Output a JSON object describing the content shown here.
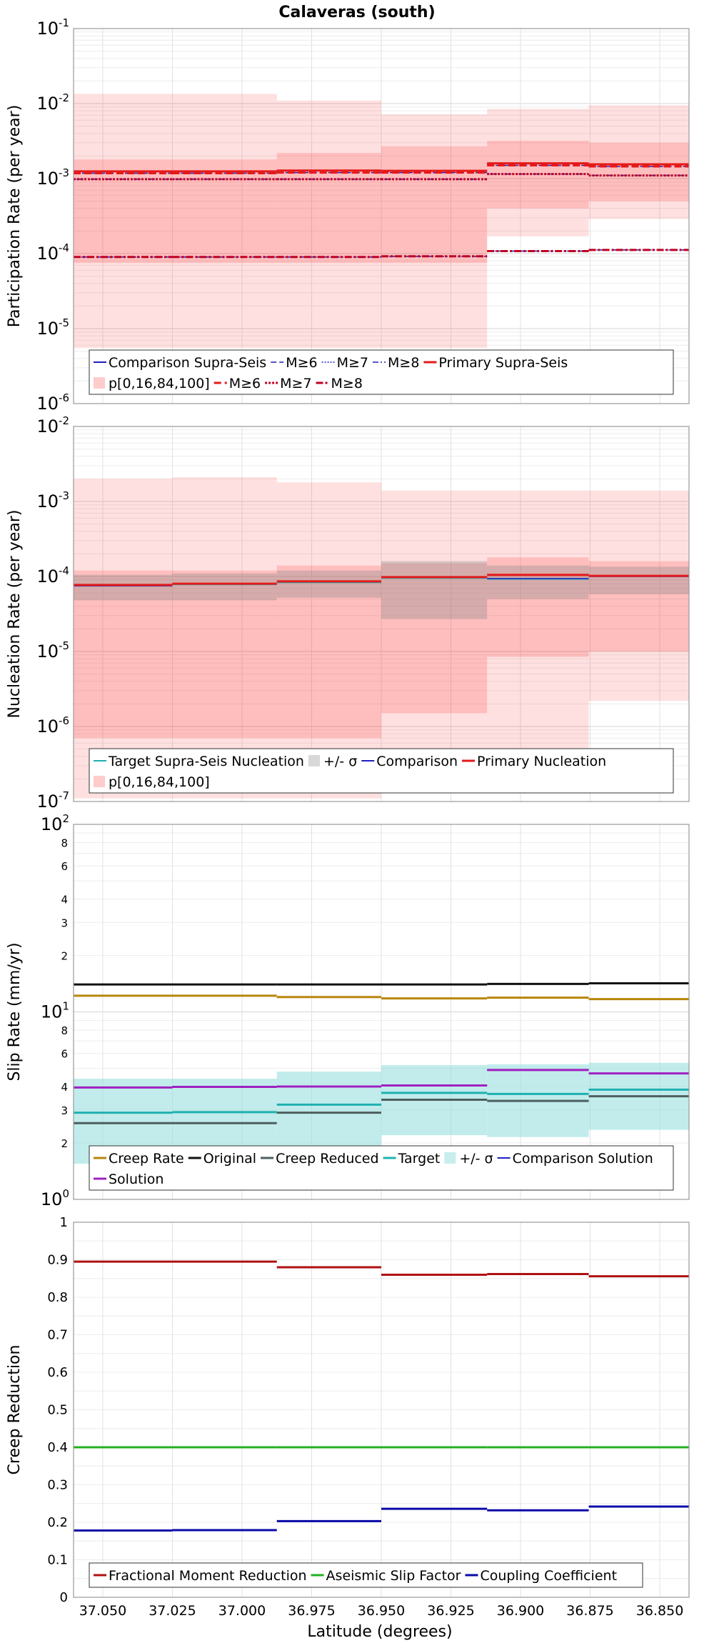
{
  "title": "Calaveras (south)",
  "xlabel": "Latitude (degrees)",
  "x_reversed": true,
  "xlim": [
    37.0605,
    36.8395
  ],
  "x_ticks": [
    37.05,
    37.025,
    37.0,
    36.975,
    36.95,
    36.925,
    36.9,
    36.875,
    36.85
  ],
  "x_tick_labels": [
    "37.050",
    "37.025",
    "37.000",
    "36.975",
    "36.950",
    "36.925",
    "36.900",
    "36.875",
    "36.850"
  ],
  "section_edges": [
    37.0605,
    37.025,
    36.9875,
    36.95,
    36.912,
    36.8755,
    36.8395
  ],
  "colors": {
    "primary_red": "#e41a1a",
    "fill_red": "#ff0000",
    "comparison_blue": "#1f1fbf",
    "coupling_blue": "#0a0aa8",
    "creep_gold": "#b8860b",
    "original_black": "#111111",
    "creep_reduced_gray": "#4d5e5e",
    "target_teal": "#1fb0b0",
    "sigma_fill": "#8fdcdc",
    "solution_purple": "#a020c0",
    "fmr_darkred": "#b01010",
    "aseismic_green": "#22b022",
    "nucleation_gray": "#8a8a8a"
  },
  "chart_data": [
    {
      "id": "participation",
      "type": "line",
      "scale": "log",
      "ylabel": "Participation Rate (per year)",
      "ylim": [
        1e-06,
        0.1
      ],
      "y_ticks": [
        {
          "base": "10",
          "exp": "-6"
        },
        {
          "base": "10",
          "exp": "-5"
        },
        {
          "base": "10",
          "exp": "-4"
        },
        {
          "base": "10",
          "exp": "-3"
        },
        {
          "base": "10",
          "exp": "-2"
        },
        {
          "base": "10",
          "exp": "-1"
        }
      ],
      "bands": [
        {
          "name": "p[0,16,84,100] outer",
          "lo": [
            5.5e-06,
            5.5e-06,
            5.5e-06,
            5.5e-06,
            0.00017,
            0.00029
          ],
          "hi": [
            0.0135,
            0.0135,
            0.011,
            0.0072,
            0.0085,
            0.0095
          ],
          "color": "#ff0000",
          "opacity": 0.12
        },
        {
          "name": "p[0,16,84,100] inner",
          "lo": [
            7.5e-05,
            7.5e-05,
            7.5e-05,
            7.5e-05,
            0.0004,
            0.0005
          ],
          "hi": [
            0.0018,
            0.0018,
            0.0022,
            0.0027,
            0.0032,
            0.003
          ],
          "color": "#ff0000",
          "opacity": 0.15
        }
      ],
      "series": [
        {
          "name": "Comparison Supra-Seis",
          "values": [
            0.00125,
            0.00125,
            0.00128,
            0.00127,
            0.0016,
            0.00155
          ],
          "color": "#1f1fbf",
          "width": 2,
          "dash": ""
        },
        {
          "name": "M≥6",
          "values": [
            0.00118,
            0.00118,
            0.0012,
            0.0012,
            0.0015,
            0.00145
          ],
          "color": "#1f1fbf",
          "width": 1.5,
          "dash": "8,4"
        },
        {
          "name": "M≥7",
          "values": [
            0.00098,
            0.00098,
            0.00098,
            0.00098,
            0.00115,
            0.0011
          ],
          "color": "#1f1fbf",
          "width": 1.5,
          "dash": "2,2"
        },
        {
          "name": "M≥8",
          "values": [
            9e-05,
            9e-05,
            9e-05,
            9.2e-05,
            0.000108,
            0.000112
          ],
          "color": "#1f1fbf",
          "width": 1.5,
          "dash": "8,3,2,3"
        },
        {
          "name": "Primary Supra-Seis",
          "values": [
            0.00125,
            0.00125,
            0.00128,
            0.00127,
            0.0016,
            0.00155
          ],
          "color": "#e41a1a",
          "width": 3,
          "dash": ""
        },
        {
          "name": "M≥6",
          "values": [
            0.00118,
            0.00118,
            0.0012,
            0.0012,
            0.0015,
            0.00145
          ],
          "color": "#e41a1a",
          "width": 3,
          "dash": "10,5"
        },
        {
          "name": "M≥7",
          "values": [
            0.00098,
            0.00098,
            0.00098,
            0.00098,
            0.00115,
            0.0011
          ],
          "color": "#c00020",
          "width": 3,
          "dash": "3,2"
        },
        {
          "name": "M≥8",
          "values": [
            9e-05,
            9e-05,
            9e-05,
            9.2e-05,
            0.000108,
            0.000112
          ],
          "color": "#c00020",
          "width": 3,
          "dash": "10,3,3,3"
        }
      ],
      "legend": {
        "rows": [
          [
            {
              "label": "Comparison Supra-Seis",
              "kind": "line",
              "color": "#1f1fbf",
              "dash": "",
              "width": 2
            },
            {
              "label": "M≥6",
              "kind": "line",
              "color": "#1f1fbf",
              "dash": "8,4",
              "width": 1.5
            },
            {
              "label": "M≥7",
              "kind": "line",
              "color": "#1f1fbf",
              "dash": "2,2",
              "width": 1.5
            },
            {
              "label": "M≥8",
              "kind": "line",
              "color": "#1f1fbf",
              "dash": "8,3,2,3",
              "width": 1.5
            },
            {
              "label": "Primary Supra-Seis",
              "kind": "line",
              "color": "#e41a1a",
              "dash": "",
              "width": 3
            }
          ],
          [
            {
              "label": "p[0,16,84,100]",
              "kind": "box",
              "color": "#ffcccc"
            },
            {
              "label": "M≥6",
              "kind": "line",
              "color": "#e41a1a",
              "dash": "10,5",
              "width": 3
            },
            {
              "label": "M≥7",
              "kind": "line",
              "color": "#c00020",
              "dash": "3,2",
              "width": 3
            },
            {
              "label": "M≥8",
              "kind": "line",
              "color": "#c00020",
              "dash": "10,3,3,3",
              "width": 3
            }
          ]
        ]
      }
    },
    {
      "id": "nucleation",
      "type": "line",
      "scale": "log",
      "ylabel": "Nucleation Rate (per year)",
      "ylim": [
        1e-07,
        0.01
      ],
      "y_ticks": [
        {
          "base": "10",
          "exp": "-7"
        },
        {
          "base": "10",
          "exp": "-6"
        },
        {
          "base": "10",
          "exp": "-5"
        },
        {
          "base": "10",
          "exp": "-4"
        },
        {
          "base": "10",
          "exp": "-3"
        },
        {
          "base": "10",
          "exp": "-2"
        }
      ],
      "bands": [
        {
          "name": "p[0,16,84,100] outer",
          "lo": [
            1.1e-07,
            1.1e-07,
            1.1e-07,
            1.7e-07,
            5e-07,
            2.2e-06
          ],
          "hi": [
            0.002,
            0.0021,
            0.0018,
            0.0014,
            0.0014,
            0.0014
          ],
          "color": "#ff0000",
          "opacity": 0.12
        },
        {
          "name": "p[0,16,84,100] inner",
          "lo": [
            7e-07,
            7e-07,
            7e-07,
            1.5e-06,
            8.5e-06,
            1e-05
          ],
          "hi": [
            0.00012,
            0.00012,
            0.00014,
            0.00015,
            0.00018,
            0.00016
          ],
          "color": "#ff0000",
          "opacity": 0.15
        },
        {
          "name": "+/- σ",
          "lo": [
            4.8e-05,
            4.8e-05,
            5.2e-05,
            2.7e-05,
            5e-05,
            5.8e-05
          ],
          "hi": [
            0.000105,
            0.00011,
            0.00012,
            0.00016,
            0.00014,
            0.000135
          ],
          "color": "#8a8a8a",
          "opacity": 0.35
        }
      ],
      "series": [
        {
          "name": "Target Supra-Seis Nucleation",
          "values": [
            7.5e-05,
            7.8e-05,
            8.3e-05,
            9.5e-05,
            9.2e-05,
            0.0001
          ],
          "color": "#1fb0b0",
          "width": 1.5,
          "dash": ""
        },
        {
          "name": "Comparison",
          "values": [
            7.5e-05,
            7.9e-05,
            8.5e-05,
            9.7e-05,
            9.4e-05,
            0.0001
          ],
          "color": "#1f1fbf",
          "width": 1.5,
          "dash": ""
        },
        {
          "name": "Primary Nucleation",
          "values": [
            7.7e-05,
            8e-05,
            8.6e-05,
            9.8e-05,
            0.000105,
            0.000102
          ],
          "color": "#e41a1a",
          "width": 3,
          "dash": ""
        }
      ],
      "legend": {
        "rows": [
          [
            {
              "label": "Target Supra-Seis Nucleation",
              "kind": "line",
              "color": "#1fb0b0",
              "dash": "",
              "width": 2
            },
            {
              "label": "+/- σ",
              "kind": "box",
              "color": "#d8d8d8"
            },
            {
              "label": "Comparison",
              "kind": "line",
              "color": "#1f1fbf",
              "dash": "",
              "width": 2
            },
            {
              "label": "Primary Nucleation",
              "kind": "line",
              "color": "#e41a1a",
              "dash": "",
              "width": 3
            }
          ],
          [
            {
              "label": "p[0,16,84,100]",
              "kind": "box",
              "color": "#ffcccc"
            }
          ]
        ]
      }
    },
    {
      "id": "slip",
      "type": "line",
      "scale": "log",
      "ylabel": "Slip Rate (mm/yr)",
      "ylim": [
        1,
        100
      ],
      "y_ticks": [
        {
          "base": "10",
          "exp": "0",
          "value": 1
        },
        {
          "base": "10",
          "exp": "1",
          "value": 10
        },
        {
          "base": "10",
          "exp": "2",
          "value": 100
        }
      ],
      "y_minor_ticks": [
        {
          "label": "2",
          "value": 2
        },
        {
          "label": "3",
          "value": 3
        },
        {
          "label": "4",
          "value": 4
        },
        {
          "label": "6",
          "value": 6
        },
        {
          "label": "8",
          "value": 8
        },
        {
          "label": "2",
          "value": 20
        },
        {
          "label": "3",
          "value": 30
        },
        {
          "label": "4",
          "value": 40
        },
        {
          "label": "6",
          "value": 60
        },
        {
          "label": "8",
          "value": 80
        }
      ],
      "bands": [
        {
          "name": "+/- σ",
          "lo": [
            1.55,
            1.55,
            1.75,
            2.2,
            2.15,
            2.35
          ],
          "hi": [
            4.4,
            4.4,
            4.8,
            5.2,
            5.25,
            5.35
          ],
          "color": "#8fdcdc",
          "opacity": 0.55
        }
      ],
      "series": [
        {
          "name": "Creep Rate",
          "values": [
            12.2,
            12.2,
            12.0,
            11.8,
            11.9,
            11.7
          ],
          "color": "#b8860b",
          "width": 3,
          "dash": ""
        },
        {
          "name": "Original",
          "values": [
            14.0,
            14.0,
            14.0,
            14.0,
            14.1,
            14.2
          ],
          "color": "#111111",
          "width": 3,
          "dash": ""
        },
        {
          "name": "Creep Reduced",
          "values": [
            2.55,
            2.55,
            2.9,
            3.4,
            3.35,
            3.55
          ],
          "color": "#4d5e5e",
          "width": 3,
          "dash": ""
        },
        {
          "name": "Target",
          "values": [
            2.9,
            2.92,
            3.2,
            3.7,
            3.65,
            3.85
          ],
          "color": "#1fb0b0",
          "width": 3,
          "dash": ""
        },
        {
          "name": "Comparison Solution",
          "values": [
            3.95,
            3.98,
            4.0,
            4.05,
            4.9,
            4.7
          ],
          "color": "#1f1fbf",
          "width": 1.5,
          "dash": ""
        },
        {
          "name": "Solution",
          "values": [
            3.95,
            3.98,
            4.0,
            4.05,
            4.9,
            4.7
          ],
          "color": "#a020c0",
          "width": 3,
          "dash": ""
        }
      ],
      "legend": {
        "rows": [
          [
            {
              "label": "Creep Rate",
              "kind": "line",
              "color": "#b8860b",
              "dash": "",
              "width": 3
            },
            {
              "label": "Original",
              "kind": "line",
              "color": "#111111",
              "dash": "",
              "width": 3
            },
            {
              "label": "Creep Reduced",
              "kind": "line",
              "color": "#4d5e5e",
              "dash": "",
              "width": 3
            },
            {
              "label": "Target",
              "kind": "line",
              "color": "#1fb0b0",
              "dash": "",
              "width": 3
            },
            {
              "label": "+/- σ",
              "kind": "box",
              "color": "#c8eeee"
            },
            {
              "label": "Comparison Solution",
              "kind": "line",
              "color": "#1f1fbf",
              "dash": "",
              "width": 2
            }
          ],
          [
            {
              "label": "Solution",
              "kind": "line",
              "color": "#a020c0",
              "dash": "",
              "width": 3
            }
          ]
        ]
      }
    },
    {
      "id": "creep",
      "type": "line",
      "scale": "linear",
      "ylabel": "Creep Reduction",
      "ylim": [
        0,
        1
      ],
      "y_ticks": [
        {
          "label": "0",
          "value": 0
        },
        {
          "label": "0.1",
          "value": 0.1
        },
        {
          "label": "0.2",
          "value": 0.2
        },
        {
          "label": "0.3",
          "value": 0.3
        },
        {
          "label": "0.4",
          "value": 0.4
        },
        {
          "label": "0.5",
          "value": 0.5
        },
        {
          "label": "0.6",
          "value": 0.6
        },
        {
          "label": "0.7",
          "value": 0.7
        },
        {
          "label": "0.8",
          "value": 0.8
        },
        {
          "label": "0.9",
          "value": 0.9
        },
        {
          "label": "1",
          "value": 1
        }
      ],
      "bands": [],
      "series": [
        {
          "name": "Fractional Moment Reduction",
          "values": [
            0.895,
            0.895,
            0.88,
            0.86,
            0.862,
            0.856
          ],
          "color": "#b01010",
          "width": 3,
          "dash": ""
        },
        {
          "name": "Aseismic Slip Factor",
          "values": [
            0.4,
            0.4,
            0.4,
            0.4,
            0.4,
            0.4
          ],
          "color": "#22b022",
          "width": 3,
          "dash": ""
        },
        {
          "name": "Coupling Coefficient",
          "values": [
            0.178,
            0.179,
            0.203,
            0.236,
            0.232,
            0.242
          ],
          "color": "#0a0aa8",
          "width": 3,
          "dash": ""
        }
      ],
      "legend": {
        "rows": [
          [
            {
              "label": "Fractional Moment Reduction",
              "kind": "line",
              "color": "#b01010",
              "dash": "",
              "width": 3
            },
            {
              "label": "Aseismic Slip Factor",
              "kind": "line",
              "color": "#22b022",
              "dash": "",
              "width": 3
            },
            {
              "label": "Coupling Coefficient",
              "kind": "line",
              "color": "#0a0aa8",
              "dash": "",
              "width": 3
            }
          ]
        ]
      }
    }
  ]
}
